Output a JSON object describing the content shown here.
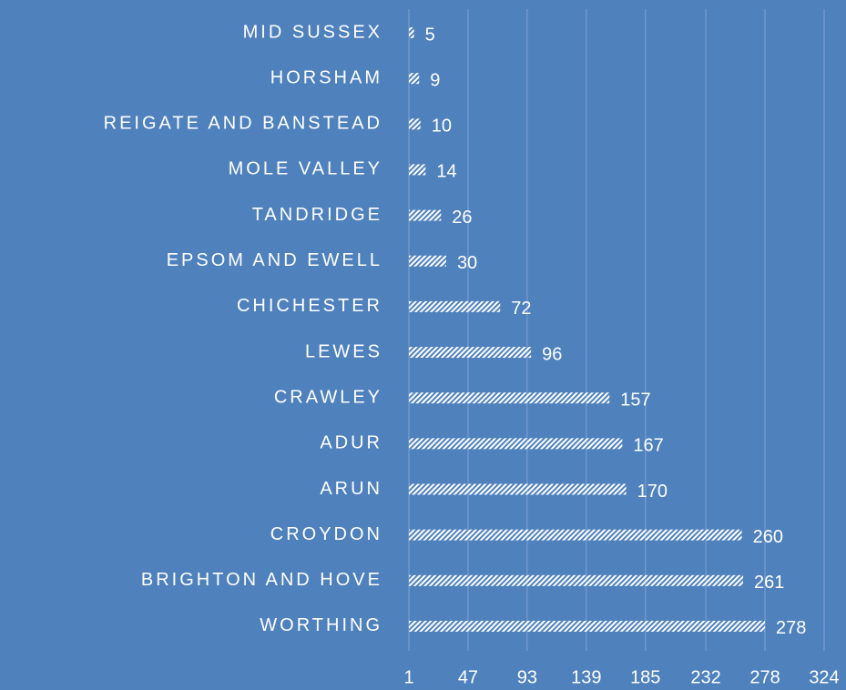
{
  "chart_data": {
    "type": "bar",
    "orientation": "horizontal",
    "categories": [
      "MID SUSSEX",
      "HORSHAM",
      "REIGATE AND BANSTEAD",
      "MOLE VALLEY",
      "TANDRIDGE",
      "EPSOM AND EWELL",
      "CHICHESTER",
      "LEWES",
      "CRAWLEY",
      "ADUR",
      "ARUN",
      "CROYDON",
      "BRIGHTON AND HOVE",
      "WORTHING"
    ],
    "values": [
      5,
      9,
      10,
      14,
      26,
      30,
      72,
      96,
      157,
      167,
      170,
      260,
      261,
      278
    ],
    "color": "#ffffff",
    "background": "#4f81bd",
    "xlim": [
      1,
      324
    ],
    "xticks": [
      1,
      47,
      93,
      139,
      185,
      232,
      278,
      324
    ],
    "grid": true
  }
}
